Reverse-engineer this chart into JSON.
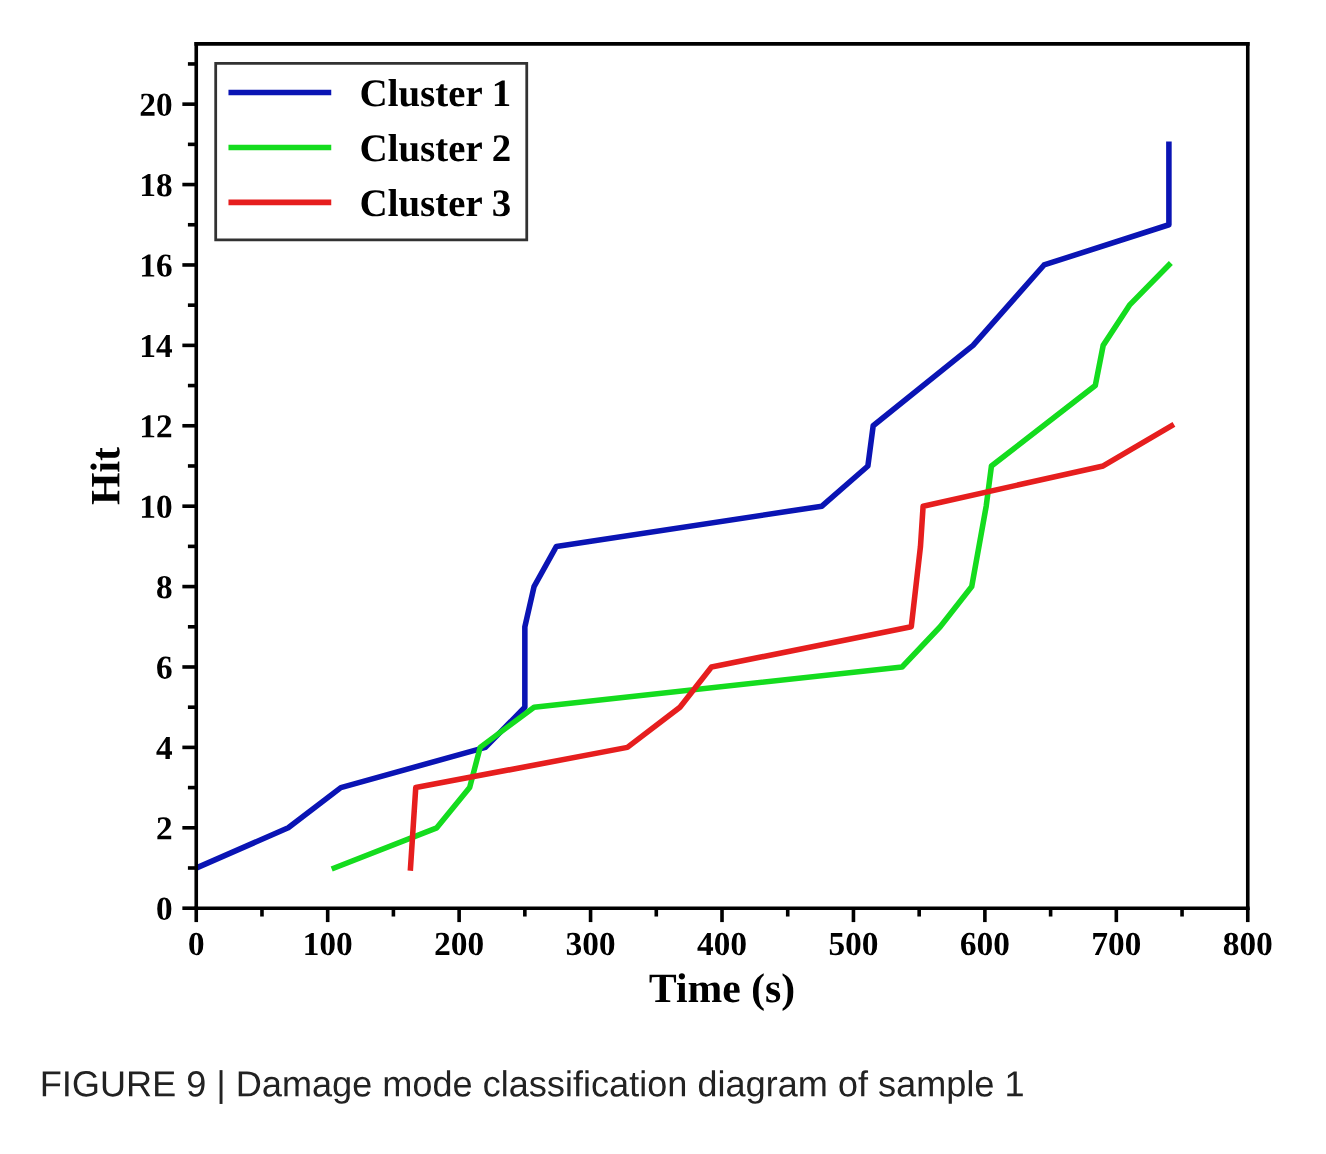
{
  "chart_data": {
    "type": "line",
    "xlabel": "Time (s)",
    "ylabel": "Hit",
    "xlim": [
      0,
      800
    ],
    "xticks": [
      0,
      100,
      200,
      300,
      400,
      500,
      600,
      700,
      800
    ],
    "ylim": [
      0,
      21.5
    ],
    "yticks": [
      0,
      2,
      4,
      6,
      8,
      10,
      12,
      14,
      16,
      18,
      20
    ],
    "grid": false,
    "legend": "top left",
    "marker": "none",
    "line_style": "solid",
    "series": [
      {
        "name": "Cluster 1",
        "color": "#0a14b4",
        "x": [
          0,
          70,
          110,
          220,
          250,
          250,
          257,
          274,
          476,
          511,
          515,
          591,
          645,
          740,
          740
        ],
        "values": [
          1,
          2,
          3,
          4,
          5,
          7,
          8,
          9,
          10,
          11,
          12,
          14,
          16,
          17,
          19
        ]
      },
      {
        "name": "Cluster 2",
        "color": "#14dc1e",
        "x": [
          105,
          183,
          208,
          216,
          257,
          537,
          566,
          590,
          601,
          605,
          684,
          690,
          710,
          740
        ],
        "values": [
          1,
          2,
          3,
          4,
          5,
          6,
          7,
          8,
          10,
          11,
          13,
          14,
          15,
          16
        ]
      },
      {
        "name": "Cluster 3",
        "color": "#e61e1e",
        "x": [
          163,
          167,
          328,
          368,
          392,
          544,
          551,
          553,
          690,
          742
        ],
        "values": [
          1,
          3,
          4,
          5,
          6,
          7,
          9,
          10,
          11,
          12
        ]
      }
    ],
    "annotations": [
      "FIGURE 9 | Damage mode classification diagram of sample 1"
    ]
  }
}
